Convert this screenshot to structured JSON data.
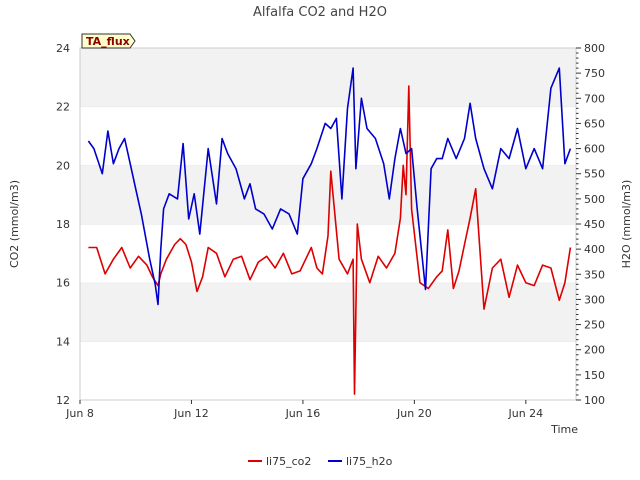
{
  "chart_data": {
    "type": "line",
    "title": "Alfalfa CO2 and H2O",
    "badge": "TA_flux",
    "xlabel": "Time",
    "ylabel_left": "CO2 (mmol/m3)",
    "ylabel_right": "H2O (mmol/m3)",
    "x_unit": "day of June",
    "xlim": [
      8,
      25.8
    ],
    "ylim_left": [
      12,
      24
    ],
    "ylim_right": [
      100,
      800
    ],
    "x_ticks": [
      8,
      12,
      16,
      20,
      24
    ],
    "x_tick_labels": [
      "Jun 8",
      "Jun 12",
      "Jun 16",
      "Jun 20",
      "Jun 24"
    ],
    "y_ticks_left": [
      12,
      14,
      16,
      18,
      20,
      22,
      24
    ],
    "y_ticks_right": [
      100,
      150,
      200,
      250,
      300,
      350,
      400,
      450,
      500,
      550,
      600,
      650,
      700,
      750,
      800
    ],
    "series": [
      {
        "name": "li75_co2",
        "axis": "left",
        "color": "#dd0000",
        "x": [
          8.3,
          8.6,
          8.9,
          9.2,
          9.5,
          9.8,
          10.1,
          10.4,
          10.6,
          10.8,
          10.9,
          11.1,
          11.4,
          11.6,
          11.8,
          12.0,
          12.2,
          12.4,
          12.6,
          12.9,
          13.2,
          13.5,
          13.8,
          14.1,
          14.4,
          14.7,
          15.0,
          15.3,
          15.6,
          15.9,
          16.1,
          16.3,
          16.5,
          16.7,
          16.9,
          17.0,
          17.3,
          17.6,
          17.8,
          17.85,
          17.95,
          18.1,
          18.4,
          18.7,
          19.0,
          19.3,
          19.5,
          19.6,
          19.7,
          19.8,
          19.9,
          20.2,
          20.5,
          20.8,
          21.0,
          21.2,
          21.4,
          21.6,
          21.8,
          22.0,
          22.2,
          22.5,
          22.8,
          23.1,
          23.4,
          23.7,
          24.0,
          24.3,
          24.6,
          24.9,
          25.2,
          25.4,
          25.6
        ],
        "values": [
          17.2,
          17.2,
          16.3,
          16.8,
          17.2,
          16.5,
          16.9,
          16.6,
          16.2,
          15.9,
          16.3,
          16.8,
          17.3,
          17.5,
          17.3,
          16.7,
          15.7,
          16.2,
          17.2,
          17.0,
          16.2,
          16.8,
          16.9,
          16.1,
          16.7,
          16.9,
          16.5,
          17.0,
          16.3,
          16.4,
          16.8,
          17.2,
          16.5,
          16.3,
          17.6,
          19.8,
          16.8,
          16.3,
          16.8,
          12.2,
          18.0,
          16.8,
          16.0,
          16.9,
          16.5,
          17.0,
          18.2,
          20.0,
          19.0,
          22.7,
          18.5,
          16.0,
          15.8,
          16.2,
          16.4,
          17.8,
          15.8,
          16.4,
          17.3,
          18.2,
          19.2,
          15.1,
          16.5,
          16.8,
          15.5,
          16.6,
          16.0,
          15.9,
          16.6,
          16.5,
          15.4,
          16.0,
          17.2
        ]
      },
      {
        "name": "li75_h2o",
        "axis": "right",
        "color": "#0000cc",
        "x": [
          8.3,
          8.5,
          8.8,
          9.0,
          9.2,
          9.4,
          9.6,
          9.8,
          10.0,
          10.2,
          10.5,
          10.7,
          10.8,
          10.9,
          11.0,
          11.2,
          11.5,
          11.7,
          11.9,
          12.1,
          12.3,
          12.6,
          12.9,
          13.1,
          13.3,
          13.6,
          13.9,
          14.1,
          14.3,
          14.6,
          14.9,
          15.2,
          15.5,
          15.8,
          16.0,
          16.3,
          16.5,
          16.8,
          17.0,
          17.2,
          17.4,
          17.6,
          17.8,
          17.9,
          18.1,
          18.3,
          18.6,
          18.9,
          19.1,
          19.3,
          19.5,
          19.7,
          19.9,
          20.1,
          20.4,
          20.6,
          20.8,
          21.0,
          21.2,
          21.5,
          21.8,
          22.0,
          22.2,
          22.5,
          22.8,
          23.1,
          23.4,
          23.7,
          24.0,
          24.3,
          24.6,
          24.9,
          25.2,
          25.4,
          25.6
        ],
        "values": [
          615,
          600,
          550,
          635,
          570,
          600,
          620,
          570,
          520,
          470,
          380,
          330,
          290,
          400,
          480,
          510,
          500,
          610,
          460,
          510,
          430,
          600,
          490,
          620,
          590,
          560,
          500,
          530,
          480,
          470,
          440,
          480,
          470,
          430,
          540,
          570,
          600,
          650,
          640,
          660,
          500,
          680,
          760,
          560,
          700,
          640,
          620,
          570,
          500,
          580,
          640,
          590,
          600,
          480,
          320,
          560,
          580,
          580,
          620,
          580,
          620,
          690,
          620,
          560,
          520,
          600,
          580,
          640,
          560,
          600,
          560,
          720,
          760,
          570,
          600
        ]
      }
    ],
    "legend": [
      {
        "label": "li75_co2",
        "color": "#dd0000"
      },
      {
        "label": "li75_h2o",
        "color": "#0000cc"
      }
    ],
    "legend_position": "bottom-center",
    "grid": "horizontal bands"
  }
}
